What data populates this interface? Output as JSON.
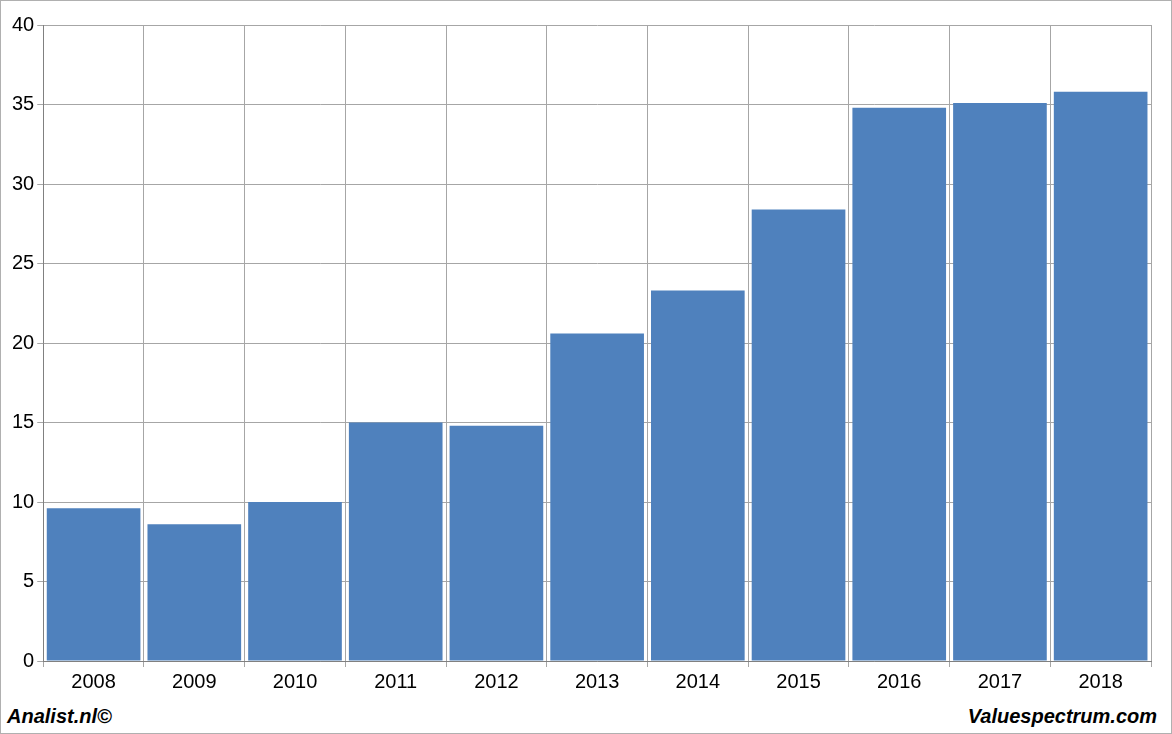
{
  "chart_data": {
    "type": "bar",
    "categories": [
      "2008",
      "2009",
      "2010",
      "2011",
      "2012",
      "2013",
      "2014",
      "2015",
      "2016",
      "2017",
      "2018"
    ],
    "values": [
      9.6,
      8.6,
      10.0,
      15.0,
      14.8,
      20.6,
      23.3,
      28.4,
      34.8,
      35.1,
      35.8
    ],
    "color": "#4f81bd",
    "ylim": [
      0,
      40
    ],
    "yticks": [
      0,
      5,
      10,
      15,
      20,
      25,
      30,
      35,
      40
    ],
    "grid": true,
    "annotations": [
      "Analist.nl©",
      "Valuespectrum.com"
    ]
  }
}
